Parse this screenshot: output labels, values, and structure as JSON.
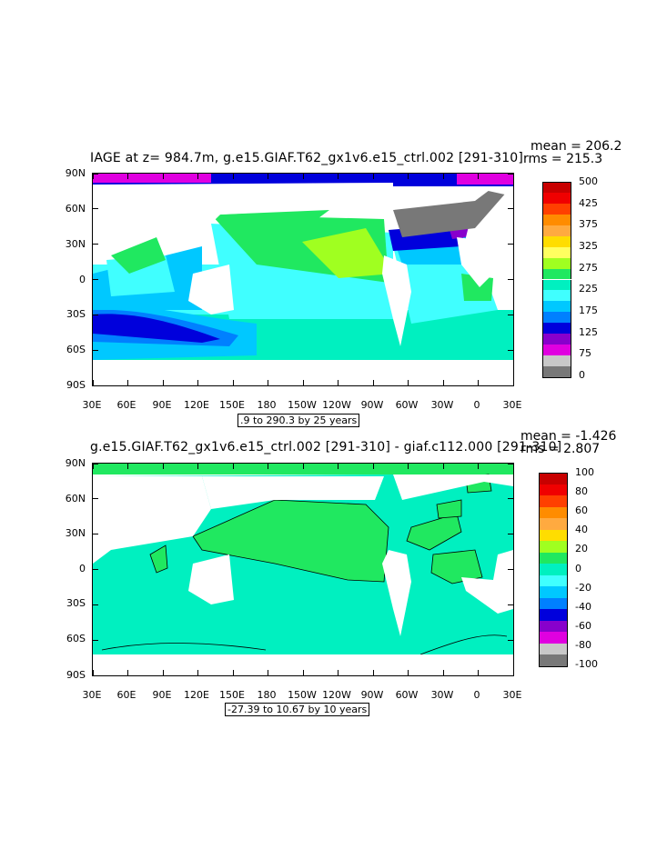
{
  "panels": [
    {
      "title": "IAGE at z= 984.7m, g.e15.GIAF.T62_gx1v6.e15_ctrl.002 [291-310]",
      "mean": "mean = 206.2",
      "rms": "rms = 215.3",
      "range": ".9 to 290.3 by 25 years",
      "lat_labels": [
        "90N",
        "60N",
        "30N",
        "0",
        "30S",
        "60S",
        "90S"
      ],
      "lon_labels": [
        "30E",
        "60E",
        "90E",
        "120E",
        "150E",
        "180",
        "150W",
        "120W",
        "90W",
        "60W",
        "30W",
        "0",
        "30E"
      ],
      "legend": {
        "colors": [
          "#c80000",
          "#f00000",
          "#ff4000",
          "#ff8c00",
          "#ffaa40",
          "#ffdd00",
          "#ffff60",
          "#a0ff20",
          "#20e860",
          "#00f0c0",
          "#40ffff",
          "#00c8ff",
          "#0080ff",
          "#0000dc",
          "#8800cc",
          "#e000e0",
          "#c8c8c8",
          "#787878"
        ],
        "labels": [
          "500",
          "425",
          "375",
          "325",
          "275",
          "225",
          "175",
          "125",
          "75",
          "0"
        ]
      }
    },
    {
      "title": "g.e15.GIAF.T62_gx1v6.e15_ctrl.002 [291-310] - giaf.c112.000 [291-310]",
      "mean": "mean = -1.426",
      "rms": "rms = 2.807",
      "range": "-27.39 to 10.67 by 10 years",
      "lat_labels": [
        "90N",
        "60N",
        "30N",
        "0",
        "30S",
        "60S",
        "90S"
      ],
      "lon_labels": [
        "30E",
        "60E",
        "90E",
        "120E",
        "150E",
        "180",
        "150W",
        "120W",
        "90W",
        "60W",
        "30W",
        "0",
        "30E"
      ],
      "legend": {
        "colors": [
          "#c80000",
          "#f00000",
          "#ff4000",
          "#ff8c00",
          "#ffaa40",
          "#ffdd00",
          "#a0ff20",
          "#20e860",
          "#00f0c0",
          "#40ffff",
          "#00c8ff",
          "#0080ff",
          "#0000dc",
          "#8800cc",
          "#e000e0",
          "#c8c8c8",
          "#787878"
        ],
        "labels": [
          "100",
          "80",
          "60",
          "40",
          "20",
          "0",
          "-20",
          "-40",
          "-60",
          "-80",
          "-100"
        ]
      }
    }
  ]
}
